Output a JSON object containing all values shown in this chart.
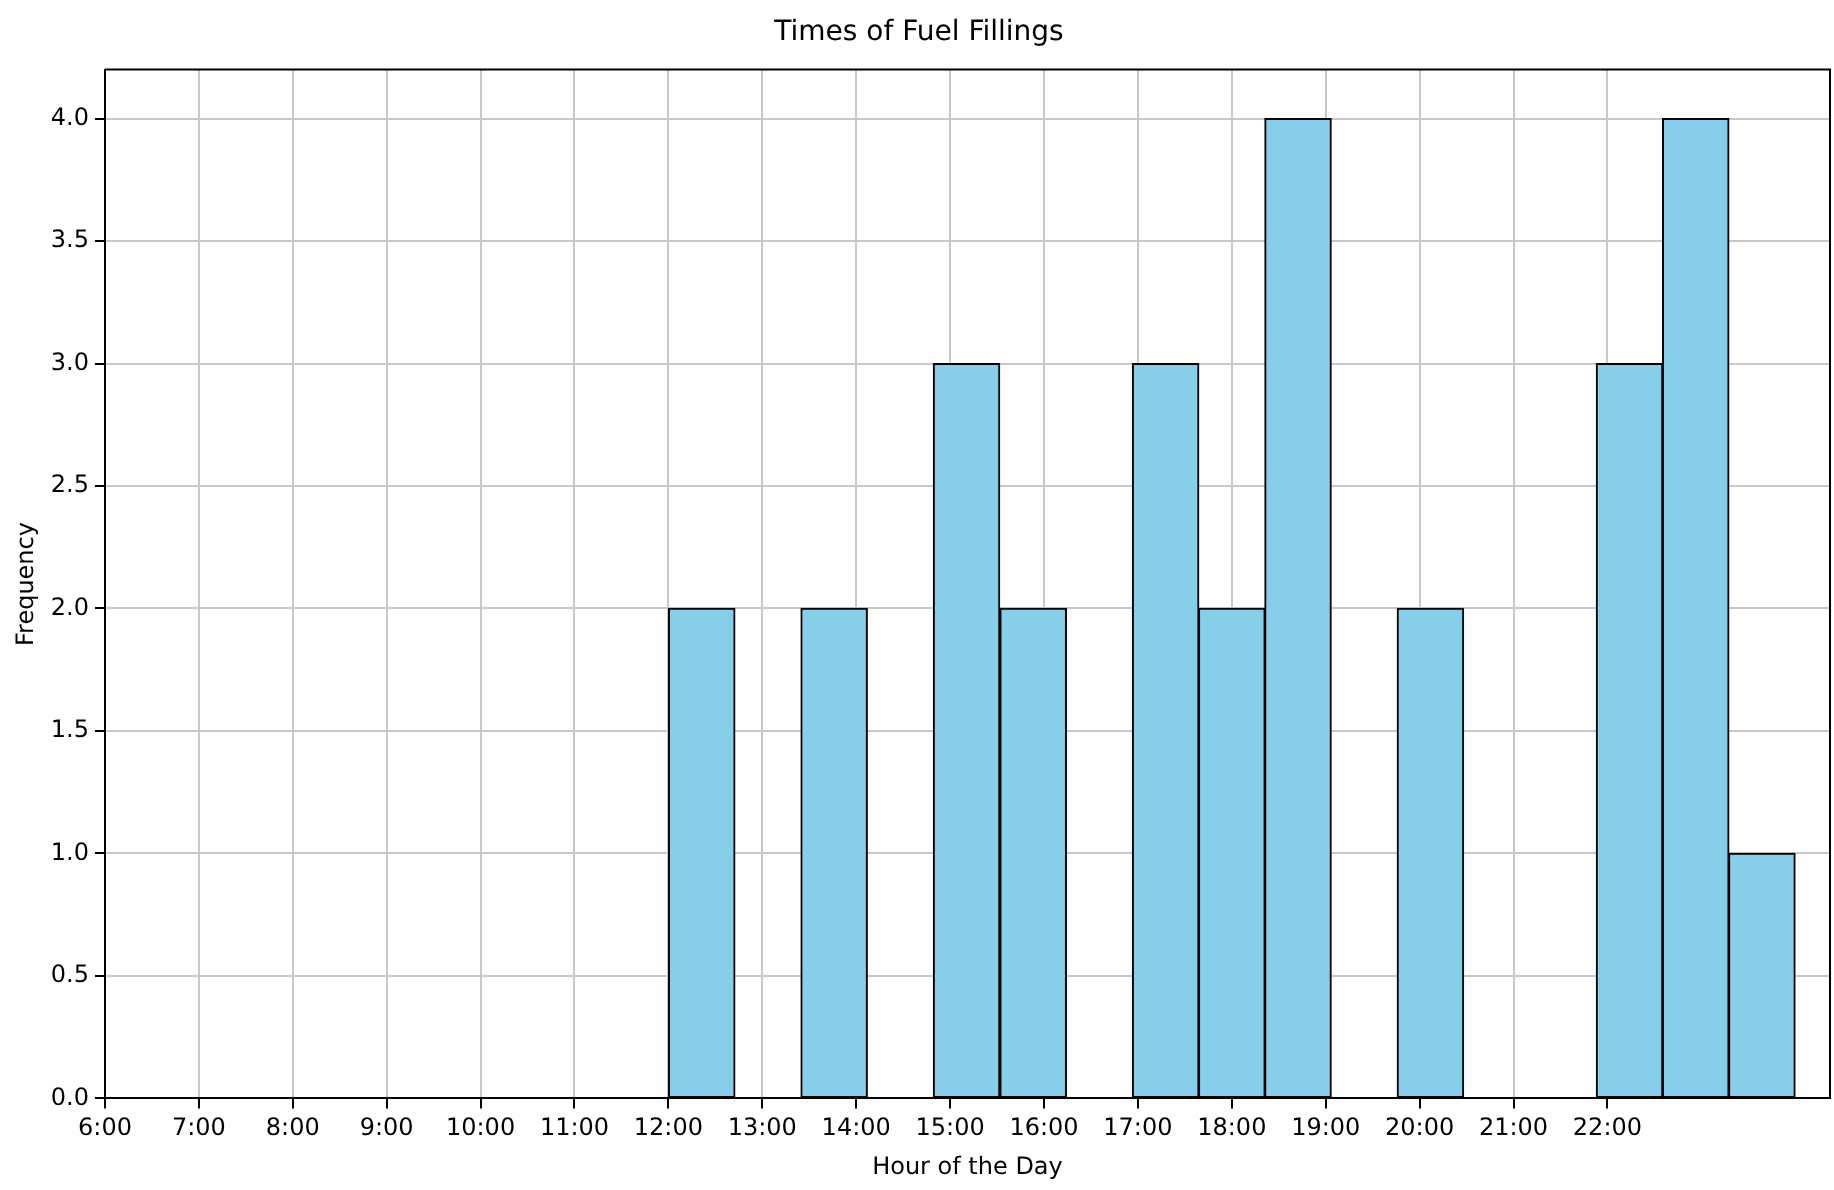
{
  "chart_data": {
    "type": "histogram",
    "title": "Times of Fuel Fillings",
    "xlabel": "Hour of the Day",
    "ylabel": "Frequency",
    "bins": [
      12,
      12.71,
      13.41,
      14.12,
      14.82,
      15.53,
      16.24,
      16.94,
      17.65,
      18.35,
      19.06,
      19.76,
      20.47,
      21.18,
      21.88,
      22.59,
      23.29,
      24
    ],
    "values": [
      2,
      0,
      2,
      0,
      3,
      2,
      0,
      3,
      2,
      4,
      0,
      2,
      0,
      0,
      3,
      4,
      1
    ],
    "color": "#87ceeb",
    "xlim": [
      6,
      24.37
    ],
    "ylim": [
      0,
      4.2
    ],
    "xticks": [
      {
        "value": 6,
        "label": "6:00"
      },
      {
        "value": 7,
        "label": "7:00"
      },
      {
        "value": 8,
        "label": "8:00"
      },
      {
        "value": 9,
        "label": "9:00"
      },
      {
        "value": 10,
        "label": "10:00"
      },
      {
        "value": 11,
        "label": "11:00"
      },
      {
        "value": 12,
        "label": "12:00"
      },
      {
        "value": 13,
        "label": "13:00"
      },
      {
        "value": 14,
        "label": "14:00"
      },
      {
        "value": 15,
        "label": "15:00"
      },
      {
        "value": 16,
        "label": "16:00"
      },
      {
        "value": 17,
        "label": "17:00"
      },
      {
        "value": 18,
        "label": "18:00"
      },
      {
        "value": 19,
        "label": "19:00"
      },
      {
        "value": 20,
        "label": "20:00"
      },
      {
        "value": 21,
        "label": "21:00"
      },
      {
        "value": 22,
        "label": "22:00"
      }
    ],
    "yticks": [
      {
        "value": 0,
        "label": "0.0"
      },
      {
        "value": 0.5,
        "label": "0.5"
      },
      {
        "value": 1,
        "label": "1.0"
      },
      {
        "value": 1.5,
        "label": "1.5"
      },
      {
        "value": 2,
        "label": "2.0"
      },
      {
        "value": 2.5,
        "label": "2.5"
      },
      {
        "value": 3,
        "label": "3.0"
      },
      {
        "value": 3.5,
        "label": "3.5"
      },
      {
        "value": 4,
        "label": "4.0"
      }
    ],
    "grid": true,
    "legend": false
  }
}
